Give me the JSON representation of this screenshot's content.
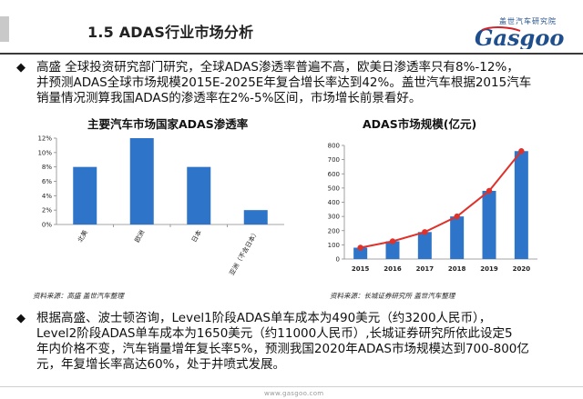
{
  "header": {
    "title": "1.5 ADAS行业市场分析",
    "logo_cn": "盖世汽车研究院",
    "logo_text": "Gasgoo"
  },
  "para1": {
    "lines": [
      "高盛 全球投资研究部门研究，全球ADAS渗透率普遍不高，欧美日渗透率只有8%-12%，",
      "并预测ADAS全球市场规模2015E-2025E年复合增长率达到42%。盖世汽车根据2015汽车",
      "销量情况测算我国ADAS的渗透率在2%-5%区间，市场增长前景看好。"
    ]
  },
  "left_chart": {
    "title": "主要汽车市场国家ADAS渗透率",
    "source": "资料来源：高盛   盖世汽车整理"
  },
  "right_chart": {
    "title": "ADAS市场规模(亿元)",
    "source": "资料来源：长城证券研究所   盖世汽车整理"
  },
  "chart_data": [
    {
      "type": "bar",
      "title": "主要汽车市场国家ADAS渗透率",
      "categories": [
        "北美",
        "欧洲",
        "日本",
        "亚洲（不含日本）"
      ],
      "values": [
        8,
        12,
        8,
        2
      ],
      "ylim": [
        0,
        12
      ],
      "yticks": [
        "0%",
        "2%",
        "4%",
        "6%",
        "8%",
        "10%",
        "12%"
      ],
      "bar_color": "#2e74c8"
    },
    {
      "type": "bar+line",
      "title": "ADAS市场规模(亿元)",
      "categories": [
        "2015",
        "2016",
        "2017",
        "2018",
        "2019",
        "2020"
      ],
      "values": [
        80,
        125,
        190,
        300,
        480,
        760
      ],
      "ylim": [
        0,
        800
      ],
      "yticks": [
        "0",
        "100",
        "200",
        "300",
        "400",
        "500",
        "600",
        "700",
        "800"
      ],
      "bar_color": "#2e74c8",
      "line_color": "#e0312b"
    }
  ],
  "para2": {
    "lines": [
      "根据高盛、波士顿咨询，Level1阶段ADAS单车成本为490美元（约3200人民币），",
      "Level2阶段ADAS单车成本为1650美元（约11000人民币）,长城证券研究所依此设定5",
      "年内价格不变，汽车销量增年复长率5%，预测我国2020年ADAS市场规模达到700-800亿",
      "元，年复增长率高达60%，处于井喷式发展。"
    ]
  },
  "footer": {
    "url": "www.gasgoo.com"
  },
  "colors": {
    "accent": "#2e74c8",
    "line": "#e0312b",
    "logo_red": "#d2232a",
    "logo_blue": "#1f4e8c"
  }
}
